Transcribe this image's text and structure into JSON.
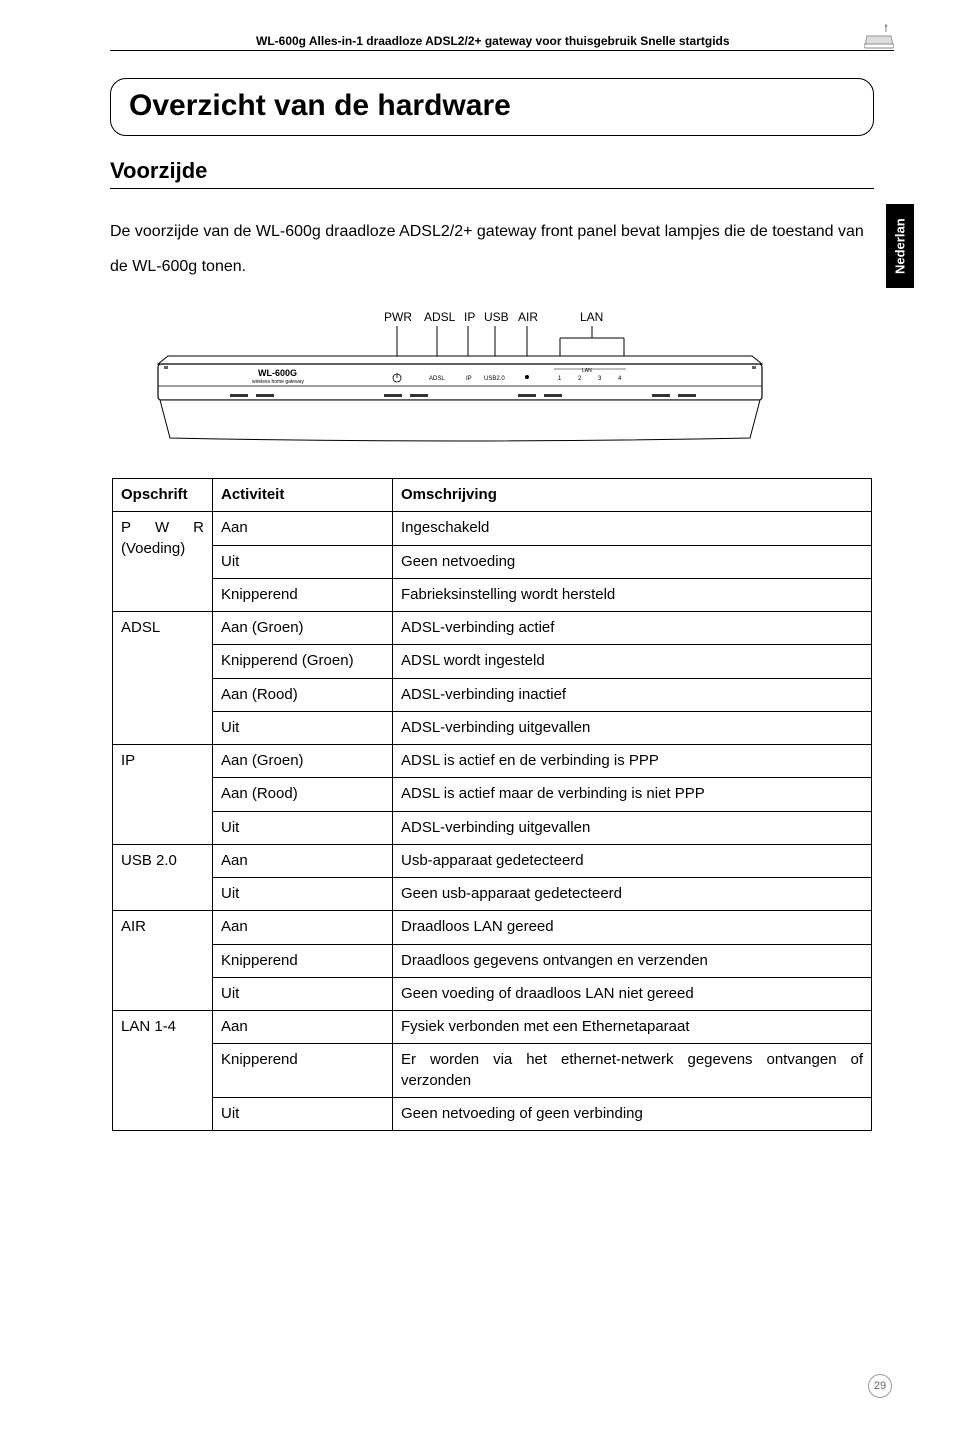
{
  "header": {
    "text": "WL-600g Alles-in-1 draadloze ADSL2/2+ gateway voor thuisgebruik Snelle startgids"
  },
  "title": "Overzicht van de hardware",
  "subtitle": "Voorzijde",
  "intro": "De voorzijde van de WL-600g draadloze ADSL2/2+ gateway front panel bevat lampjes die de toestand van de WL-600g tonen.",
  "side_tab": "Nederlan",
  "diagram": {
    "labels": [
      "PWR",
      "ADSL",
      "IP",
      "USB",
      "AIR",
      "LAN"
    ],
    "device_label": "WL-600G",
    "device_sub": "wireless home gateway",
    "panel_labels": [
      "ADSL",
      "IP",
      "USB2.0",
      "1",
      "2",
      "3",
      "4"
    ],
    "panel_lan": "LAN"
  },
  "table": {
    "headers": [
      "Opschrift",
      "Activiteit",
      "Omschrijving"
    ],
    "rows": [
      {
        "op": [
          "P   W   R",
          "(Voeding)"
        ],
        "span": 3,
        "act": "Aan",
        "desc": "Ingeschakeld"
      },
      {
        "act": "Uit",
        "desc": "Geen netvoeding"
      },
      {
        "act": "Knipperend",
        "desc": "Fabrieksinstelling wordt hersteld"
      },
      {
        "op": [
          "ADSL"
        ],
        "span": 4,
        "act": "Aan (Groen)",
        "desc": "ADSL-verbinding actief"
      },
      {
        "act": "Knipperend (Groen)",
        "desc": "ADSL wordt ingesteld"
      },
      {
        "act": "Aan (Rood)",
        "desc": "ADSL-verbinding inactief"
      },
      {
        "act": "Uit",
        "desc": "ADSL-verbinding uitgevallen"
      },
      {
        "op": [
          "IP"
        ],
        "span": 3,
        "act": "Aan (Groen)",
        "desc": "ADSL is actief en de verbinding is PPP"
      },
      {
        "act": "Aan (Rood)",
        "desc": "ADSL is actief maar de verbinding is niet PPP"
      },
      {
        "act": "Uit",
        "desc": "ADSL-verbinding uitgevallen"
      },
      {
        "op": [
          "USB 2.0"
        ],
        "span": 2,
        "act": "Aan",
        "desc": "Usb-apparaat gedetecteerd"
      },
      {
        "act": "Uit",
        "desc": "Geen usb-apparaat gedetecteerd"
      },
      {
        "op": [
          "AIR"
        ],
        "span": 3,
        "act": "Aan",
        "desc": "Draadloos LAN gereed"
      },
      {
        "act": "Knipperend",
        "desc": "Draadloos gegevens ontvangen en verzenden"
      },
      {
        "act": "Uit",
        "desc": "Geen voeding of draadloos LAN niet gereed"
      },
      {
        "op": [
          "LAN 1-4"
        ],
        "span": 3,
        "act": "Aan",
        "desc": "Fysiek verbonden met een Ethernetaparaat"
      },
      {
        "act": "Knipperend",
        "desc": "Er worden via het ethernet-netwerk gegevens ontvangen of verzonden"
      },
      {
        "act": "Uit",
        "desc": "Geen netvoeding of geen verbinding"
      }
    ]
  },
  "page_number": "29"
}
